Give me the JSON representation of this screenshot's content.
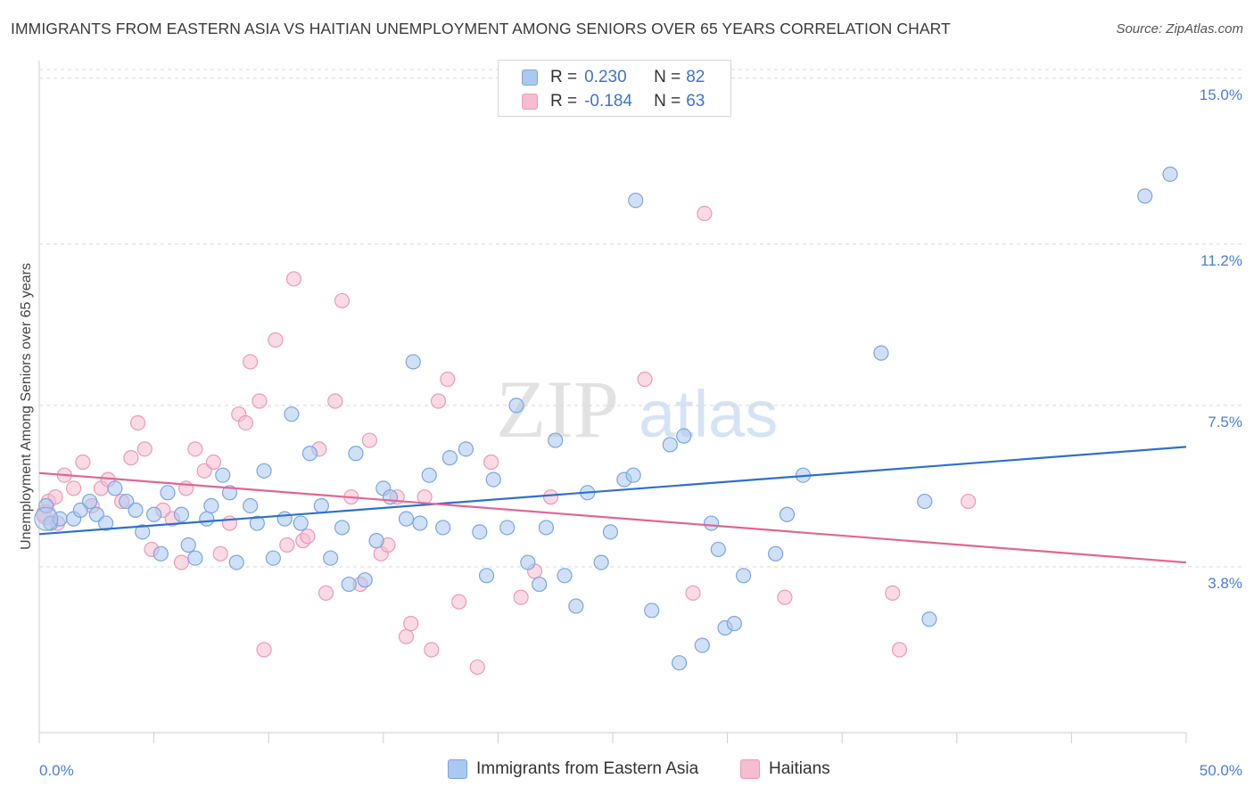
{
  "title": "IMMIGRANTS FROM EASTERN ASIA VS HAITIAN UNEMPLOYMENT AMONG SENIORS OVER 65 YEARS CORRELATION CHART",
  "source": "Source: ZipAtlas.com",
  "watermark": {
    "zip": "ZIP",
    "atlas": "atlas"
  },
  "legend": {
    "r_label": "R = ",
    "n_label": "N = ",
    "rows": [
      {
        "r": "0.230",
        "n": "82"
      },
      {
        "r": "-0.184",
        "n": "63"
      }
    ]
  },
  "colors": {
    "blue_fill": "#aac8f0",
    "blue_stroke": "#7aa6e0",
    "blue_line": "#2f6fd0",
    "pink_fill": "#f6bcd0",
    "pink_stroke": "#ec9ab8",
    "pink_line": "#e06694",
    "tick_label": "#4a7fd0",
    "grid": "#d8d8d8"
  },
  "chart_data": {
    "type": "scatter",
    "xlabel": "",
    "ylabel": "Unemployment Among Seniors over 65 years",
    "xlim": [
      0,
      50
    ],
    "ylim": [
      0,
      15.2
    ],
    "x_tick_labels": [
      "0.0%",
      "50.0%"
    ],
    "y_tick_values": [
      3.8,
      7.5,
      11.2,
      15.0
    ],
    "y_tick_labels": [
      "3.8%",
      "7.5%",
      "11.2%",
      "15.0%"
    ],
    "grid": "horizontal dashed",
    "series": [
      {
        "name": "Immigrants from Eastern Asia",
        "color": "blue",
        "trend": [
          [
            0,
            4.55
          ],
          [
            50,
            6.55
          ]
        ],
        "points": [
          [
            0.3,
            5.2
          ],
          [
            0.5,
            4.8
          ],
          [
            0.9,
            4.9
          ],
          [
            1.5,
            4.9
          ],
          [
            1.8,
            5.1
          ],
          [
            2.2,
            5.3
          ],
          [
            2.5,
            5.0
          ],
          [
            2.9,
            4.8
          ],
          [
            3.3,
            5.6
          ],
          [
            3.8,
            5.3
          ],
          [
            4.2,
            5.1
          ],
          [
            4.5,
            4.6
          ],
          [
            5.0,
            5.0
          ],
          [
            5.3,
            4.1
          ],
          [
            5.6,
            5.5
          ],
          [
            6.2,
            5.0
          ],
          [
            6.5,
            4.3
          ],
          [
            6.8,
            4.0
          ],
          [
            7.3,
            4.9
          ],
          [
            7.5,
            5.2
          ],
          [
            8.0,
            5.9
          ],
          [
            8.3,
            5.5
          ],
          [
            8.6,
            3.9
          ],
          [
            9.2,
            5.2
          ],
          [
            9.5,
            4.8
          ],
          [
            9.8,
            6.0
          ],
          [
            10.2,
            4.0
          ],
          [
            10.7,
            4.9
          ],
          [
            11.0,
            7.3
          ],
          [
            11.4,
            4.8
          ],
          [
            11.8,
            6.4
          ],
          [
            12.3,
            5.2
          ],
          [
            12.7,
            4.0
          ],
          [
            13.2,
            4.7
          ],
          [
            13.5,
            3.4
          ],
          [
            13.8,
            6.4
          ],
          [
            14.2,
            3.5
          ],
          [
            14.7,
            4.4
          ],
          [
            15.0,
            5.6
          ],
          [
            15.3,
            5.4
          ],
          [
            16.0,
            4.9
          ],
          [
            16.3,
            8.5
          ],
          [
            16.6,
            4.8
          ],
          [
            17.0,
            5.9
          ],
          [
            17.6,
            4.7
          ],
          [
            17.9,
            6.3
          ],
          [
            18.6,
            6.5
          ],
          [
            19.2,
            4.6
          ],
          [
            19.5,
            3.6
          ],
          [
            19.8,
            5.8
          ],
          [
            20.4,
            4.7
          ],
          [
            20.8,
            7.5
          ],
          [
            21.3,
            3.9
          ],
          [
            21.8,
            3.4
          ],
          [
            22.1,
            4.7
          ],
          [
            22.5,
            6.7
          ],
          [
            22.9,
            3.6
          ],
          [
            23.4,
            2.9
          ],
          [
            23.9,
            5.5
          ],
          [
            24.5,
            3.9
          ],
          [
            24.9,
            4.6
          ],
          [
            25.5,
            5.8
          ],
          [
            25.9,
            5.9
          ],
          [
            26.0,
            12.2
          ],
          [
            26.7,
            2.8
          ],
          [
            27.5,
            6.6
          ],
          [
            27.9,
            1.6
          ],
          [
            28.1,
            6.8
          ],
          [
            28.9,
            2.0
          ],
          [
            29.3,
            4.8
          ],
          [
            29.6,
            4.2
          ],
          [
            29.9,
            2.4
          ],
          [
            30.3,
            2.5
          ],
          [
            30.7,
            3.6
          ],
          [
            32.1,
            4.1
          ],
          [
            32.6,
            5.0
          ],
          [
            33.3,
            5.9
          ],
          [
            36.7,
            8.7
          ],
          [
            38.6,
            5.3
          ],
          [
            38.8,
            2.6
          ],
          [
            48.2,
            12.3
          ],
          [
            49.3,
            12.8
          ]
        ]
      },
      {
        "name": "Haitians",
        "color": "pink",
        "trend": [
          [
            0,
            5.95
          ],
          [
            50,
            3.9
          ]
        ],
        "points": [
          [
            0.2,
            5.0
          ],
          [
            0.4,
            5.3
          ],
          [
            0.7,
            5.4
          ],
          [
            1.1,
            5.9
          ],
          [
            1.5,
            5.6
          ],
          [
            1.9,
            6.2
          ],
          [
            2.3,
            5.2
          ],
          [
            2.7,
            5.6
          ],
          [
            3.0,
            5.8
          ],
          [
            3.6,
            5.3
          ],
          [
            4.0,
            6.3
          ],
          [
            4.3,
            7.1
          ],
          [
            4.6,
            6.5
          ],
          [
            4.9,
            4.2
          ],
          [
            5.4,
            5.1
          ],
          [
            5.8,
            4.9
          ],
          [
            6.2,
            3.9
          ],
          [
            6.4,
            5.6
          ],
          [
            6.8,
            6.5
          ],
          [
            7.2,
            6.0
          ],
          [
            7.6,
            6.2
          ],
          [
            7.9,
            4.1
          ],
          [
            8.3,
            4.8
          ],
          [
            8.7,
            7.3
          ],
          [
            9.0,
            7.1
          ],
          [
            9.2,
            8.5
          ],
          [
            9.6,
            7.6
          ],
          [
            9.8,
            1.9
          ],
          [
            10.3,
            9.0
          ],
          [
            10.8,
            4.3
          ],
          [
            11.1,
            10.4
          ],
          [
            11.5,
            4.4
          ],
          [
            11.7,
            4.5
          ],
          [
            12.2,
            6.5
          ],
          [
            12.5,
            3.2
          ],
          [
            12.9,
            7.6
          ],
          [
            13.2,
            9.9
          ],
          [
            13.6,
            5.4
          ],
          [
            14.0,
            3.4
          ],
          [
            14.4,
            6.7
          ],
          [
            14.9,
            4.1
          ],
          [
            15.2,
            4.3
          ],
          [
            15.6,
            5.4
          ],
          [
            16.0,
            2.2
          ],
          [
            16.2,
            2.5
          ],
          [
            16.8,
            5.4
          ],
          [
            17.1,
            1.9
          ],
          [
            17.4,
            7.6
          ],
          [
            17.8,
            8.1
          ],
          [
            18.3,
            3.0
          ],
          [
            19.1,
            1.5
          ],
          [
            19.7,
            6.2
          ],
          [
            21.0,
            3.1
          ],
          [
            21.6,
            3.7
          ],
          [
            22.3,
            5.4
          ],
          [
            26.4,
            8.1
          ],
          [
            28.5,
            3.2
          ],
          [
            29.0,
            11.9
          ],
          [
            32.5,
            3.1
          ],
          [
            37.2,
            3.2
          ],
          [
            37.5,
            1.9
          ],
          [
            40.5,
            5.3
          ],
          [
            0.8,
            4.8
          ]
        ]
      }
    ]
  }
}
